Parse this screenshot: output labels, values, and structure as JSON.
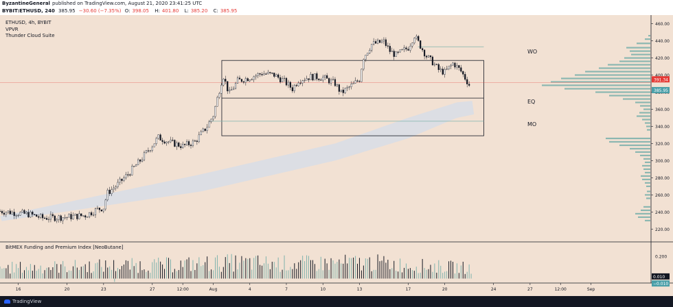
{
  "header": {
    "author": "ByzantineGeneral",
    "published_text": "published on TradingView.com, August 21, 2020 23:41:25 UTC",
    "symbol": "BYBIT:ETHUSD, 240",
    "last": "385.95",
    "change": "−30.60 (−7.35%)",
    "open_label": "O:",
    "open": "398.05",
    "high_label": "H:",
    "high": "401.80",
    "low_label": "L:",
    "low": "385.20",
    "close_label": "C:",
    "close": "385.95"
  },
  "legend": {
    "symbol_line": "ETHUSD, 4h, BYBIT",
    "indicator1": "VPVR",
    "indicator2": "Thunder Cloud Suite"
  },
  "annotations": {
    "wo": "WO",
    "eq": "EQ",
    "mo": "MO"
  },
  "colors": {
    "background": "#f2e1d3",
    "up": "#ffffff",
    "down": "#131722",
    "volume_profile": "#7fb3ad",
    "cloud": "#d8dde6",
    "last_price": "#e53935",
    "current_price": "#4a9fa8"
  },
  "footer": {
    "brand": "TradingView"
  },
  "chart_data": {
    "type": "candlestick",
    "price_axis": {
      "ylim": [
        205,
        470
      ],
      "ticks": [
        220,
        240,
        260,
        280,
        300,
        320,
        340,
        360,
        380,
        400,
        420,
        440,
        460
      ],
      "labels": [
        "220.00",
        "240.00",
        "260.00",
        "280.00",
        "300.00",
        "320.00",
        "340.00",
        "360.00",
        "380.00",
        "400.00",
        "420.00",
        "440.00",
        "460.00"
      ]
    },
    "price_badges": [
      {
        "value": 391.34,
        "label": "391.34",
        "color": "#e53935"
      },
      {
        "value": 385.95,
        "label": "385.95",
        "color": "#4a9fa8"
      }
    ],
    "x_axis": {
      "xlim_days": [
        -2.5,
        40.5
      ],
      "ticks": [
        {
          "day": -1,
          "label": "16"
        },
        {
          "day": 3,
          "label": "20"
        },
        {
          "day": 6,
          "label": "23"
        },
        {
          "day": 10,
          "label": "27"
        },
        {
          "day": 12.5,
          "label": "12:00"
        },
        {
          "day": 15,
          "label": "Aug"
        },
        {
          "day": 18,
          "label": "4"
        },
        {
          "day": 21,
          "label": "7"
        },
        {
          "day": 24,
          "label": "10"
        },
        {
          "day": 27,
          "label": "13"
        },
        {
          "day": 31,
          "label": "17"
        },
        {
          "day": 34,
          "label": "20"
        },
        {
          "day": 38,
          "label": "24"
        },
        {
          "day": 41,
          "label": "27"
        },
        {
          "day": 43.5,
          "label": "12:00"
        },
        {
          "day": 46,
          "label": "Sep"
        }
      ]
    },
    "candles_anchor": [
      [
        -2.5,
        241
      ],
      [
        0,
        237
      ],
      [
        1,
        233
      ],
      [
        3,
        234
      ],
      [
        4.5,
        236
      ],
      [
        5.5,
        243
      ],
      [
        6,
        245
      ],
      [
        6.3,
        262
      ],
      [
        7,
        270
      ],
      [
        8,
        284
      ],
      [
        9,
        300
      ],
      [
        10,
        318
      ],
      [
        10.5,
        327
      ],
      [
        11.5,
        321
      ],
      [
        12.5,
        317
      ],
      [
        13.5,
        322
      ],
      [
        14.5,
        340
      ],
      [
        15,
        353
      ],
      [
        15.8,
        400
      ],
      [
        16.3,
        378
      ],
      [
        17,
        393
      ],
      [
        18,
        397
      ],
      [
        19,
        402
      ],
      [
        20,
        400
      ],
      [
        20.8,
        393
      ],
      [
        21.5,
        384
      ],
      [
        22,
        394
      ],
      [
        23,
        398
      ],
      [
        24,
        397
      ],
      [
        25,
        390
      ],
      [
        25.5,
        379
      ],
      [
        26.5,
        389
      ],
      [
        27,
        395
      ],
      [
        27.3,
        420
      ],
      [
        28,
        436
      ],
      [
        29,
        439
      ],
      [
        29.5,
        428
      ],
      [
        30,
        423
      ],
      [
        31,
        432
      ],
      [
        31.5,
        446
      ],
      [
        32.5,
        422
      ],
      [
        33,
        415
      ],
      [
        33.5,
        406
      ],
      [
        34,
        403
      ],
      [
        34.7,
        414
      ],
      [
        35.3,
        405
      ],
      [
        35.9,
        391
      ],
      [
        36.1,
        386
      ]
    ],
    "levels": [
      {
        "name": "WO",
        "value": 433,
        "start_day": 31.8,
        "end_day": 37.2
      },
      {
        "name": "EQ",
        "value": 373,
        "start_day": 15.7,
        "end_day": 37.2
      },
      {
        "name": "MO",
        "value": 346,
        "start_day": 14.7,
        "end_day": 37.2
      }
    ],
    "range_box": {
      "top": 417,
      "bottom": 329,
      "start_day": 15.7,
      "end_day": 37.2
    },
    "cloud": {
      "upper": [
        [
          -2.5,
          235
        ],
        [
          14,
          284
        ],
        [
          25,
          320
        ],
        [
          31,
          350
        ],
        [
          35,
          368
        ],
        [
          36.4,
          370
        ]
      ],
      "lower": [
        [
          -2.5,
          229
        ],
        [
          14,
          264
        ],
        [
          25,
          300
        ],
        [
          31,
          326
        ],
        [
          35,
          350
        ],
        [
          36.4,
          354
        ]
      ]
    },
    "volume_profile": {
      "buckets": [
        [
          446,
          3
        ],
        [
          442,
          8
        ],
        [
          437,
          20
        ],
        [
          432,
          35
        ],
        [
          428,
          30
        ],
        [
          424,
          28
        ],
        [
          420,
          38
        ],
        [
          416,
          45
        ],
        [
          412,
          62
        ],
        [
          408,
          75
        ],
        [
          404,
          95
        ],
        [
          400,
          110
        ],
        [
          396,
          130
        ],
        [
          392,
          145
        ],
        [
          388,
          158
        ],
        [
          384,
          125
        ],
        [
          380,
          80
        ],
        [
          376,
          60
        ],
        [
          372,
          40
        ],
        [
          368,
          22
        ],
        [
          364,
          15
        ],
        [
          360,
          10
        ],
        [
          356,
          16
        ],
        [
          352,
          20
        ],
        [
          348,
          12
        ],
        [
          344,
          8
        ],
        [
          340,
          6
        ],
        [
          336,
          5
        ],
        [
          326,
          65
        ],
        [
          322,
          60
        ],
        [
          318,
          45
        ],
        [
          314,
          30
        ],
        [
          310,
          22
        ],
        [
          306,
          15
        ],
        [
          302,
          10
        ],
        [
          298,
          8
        ],
        [
          294,
          12
        ],
        [
          290,
          10
        ],
        [
          286,
          8
        ],
        [
          282,
          14
        ],
        [
          278,
          12
        ],
        [
          274,
          8
        ],
        [
          270,
          6
        ],
        [
          264,
          5
        ],
        [
          260,
          8
        ],
        [
          256,
          6
        ],
        [
          246,
          10
        ],
        [
          242,
          14
        ],
        [
          238,
          22
        ],
        [
          234,
          18
        ],
        [
          230,
          8
        ]
      ]
    },
    "indicator": {
      "title": "BitMEX Funding and Premium Index [NeoButane]",
      "ylim": [
        -0.04,
        0.33
      ],
      "ticks": [
        0.2
      ],
      "tick_labels": [
        "0.200"
      ],
      "badges": [
        {
          "value": 0.01,
          "label": "0.010",
          "color": "#131722"
        },
        {
          "value": -0.01,
          "label": "−0.010",
          "color": "#4a9fa8"
        }
      ],
      "anchors": [
        [
          -2.5,
          0.1
        ],
        [
          6,
          0.12
        ],
        [
          12,
          0.13
        ],
        [
          16,
          0.15
        ],
        [
          22,
          0.14
        ],
        [
          28,
          0.15
        ],
        [
          32,
          0.12
        ],
        [
          36.2,
          0.1
        ]
      ]
    }
  }
}
